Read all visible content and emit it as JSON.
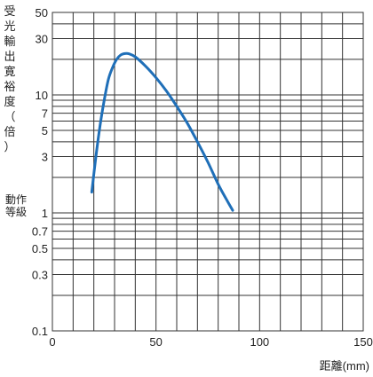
{
  "chart_data": {
    "type": "line",
    "title": "",
    "ylabel": "受光輸出寛裕度（倍）",
    "xlabel": "距離(mm)",
    "xlim": [
      0,
      150
    ],
    "ylim": [
      0.1,
      50
    ],
    "y_scale": "log",
    "grid": true,
    "x_ticks": [
      0,
      50,
      100,
      150
    ],
    "y_ticks": [
      {
        "value": 50,
        "label": "50"
      },
      {
        "value": 30,
        "label": "30"
      },
      {
        "value": 10,
        "label": "10"
      },
      {
        "value": 7,
        "label": "7"
      },
      {
        "value": 5,
        "label": "5"
      },
      {
        "value": 3,
        "label": "3"
      },
      {
        "value": 1,
        "label": "1"
      },
      {
        "value": 0.7,
        "label": "0.7"
      },
      {
        "value": 0.5,
        "label": "0.5"
      },
      {
        "value": 0.3,
        "label": "0.3"
      },
      {
        "value": 0.1,
        "label": "0.1"
      }
    ],
    "annotations": [
      {
        "text_lines": [
          "動作",
          "等級"
        ],
        "at_y": 1
      }
    ],
    "series": [
      {
        "color": "#1f6fb8",
        "x": [
          19,
          21,
          23,
          25,
          27,
          29,
          31,
          33,
          35,
          37,
          40,
          45,
          50,
          55,
          60,
          65,
          70,
          75,
          80,
          84,
          87
        ],
        "y": [
          1.5,
          3.0,
          5.5,
          9.0,
          13.5,
          17.0,
          20.0,
          21.8,
          22.4,
          22.3,
          21.0,
          17.5,
          14.0,
          10.8,
          8.0,
          5.8,
          4.0,
          2.7,
          1.75,
          1.3,
          1.05
        ]
      }
    ]
  }
}
